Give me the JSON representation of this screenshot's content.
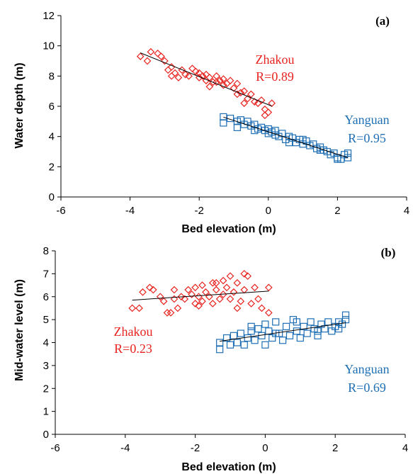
{
  "chart_data": [
    {
      "type": "scatter",
      "panel_label": "(a)",
      "xlabel": "Bed elevation (m)",
      "ylabel": "Water depth (m)",
      "xlim": [
        -6,
        4
      ],
      "ylim": [
        0,
        12
      ],
      "x_ticks": [
        -6,
        -4,
        -2,
        0,
        2,
        4
      ],
      "y_ticks": [
        0,
        2,
        4,
        6,
        8,
        10,
        12
      ],
      "grid": false,
      "series": [
        {
          "name": "Zhakou",
          "stat": "R=0.89",
          "color": "#e8231f",
          "marker": "diamond",
          "points": [
            [
              -3.7,
              9.3
            ],
            [
              -3.5,
              9.0
            ],
            [
              -3.4,
              9.6
            ],
            [
              -3.2,
              9.5
            ],
            [
              -3.1,
              9.3
            ],
            [
              -3.0,
              9.0
            ],
            [
              -2.8,
              8.6
            ],
            [
              -2.8,
              8.0
            ],
            [
              -2.7,
              8.2
            ],
            [
              -2.5,
              8.4
            ],
            [
              -2.4,
              8.1
            ],
            [
              -2.3,
              8.0
            ],
            [
              -2.2,
              8.5
            ],
            [
              -2.1,
              8.3
            ],
            [
              -2.0,
              8.2
            ],
            [
              -2.0,
              7.9
            ],
            [
              -1.9,
              8.0
            ],
            [
              -1.8,
              8.1
            ],
            [
              -1.8,
              7.7
            ],
            [
              -1.7,
              7.9
            ],
            [
              -1.6,
              7.6
            ],
            [
              -1.5,
              8.0
            ],
            [
              -1.4,
              7.7
            ],
            [
              -1.3,
              7.8
            ],
            [
              -1.3,
              7.4
            ],
            [
              -1.2,
              7.5
            ],
            [
              -1.1,
              7.7
            ],
            [
              -1.0,
              7.2
            ],
            [
              -0.9,
              7.5
            ],
            [
              -0.8,
              6.9
            ],
            [
              -0.7,
              7.0
            ],
            [
              -0.6,
              6.5
            ],
            [
              -0.5,
              6.8
            ],
            [
              -0.4,
              6.3
            ],
            [
              -0.3,
              6.2
            ],
            [
              -0.2,
              6.4
            ],
            [
              -0.1,
              5.8
            ],
            [
              -0.1,
              5.4
            ],
            [
              0.0,
              5.6
            ],
            [
              0.1,
              6.2
            ],
            [
              -2.9,
              8.4
            ],
            [
              -2.6,
              7.9
            ],
            [
              -1.7,
              7.3
            ],
            [
              -1.5,
              7.6
            ],
            [
              -0.9,
              6.8
            ],
            [
              -0.7,
              6.2
            ]
          ]
        },
        {
          "name": "Yanguan",
          "stat": "R=0.95",
          "color": "#1f6fb5",
          "marker": "square",
          "points": [
            [
              -1.3,
              5.3
            ],
            [
              -1.3,
              4.9
            ],
            [
              -1.1,
              5.2
            ],
            [
              -0.9,
              5.0
            ],
            [
              -0.8,
              5.1
            ],
            [
              -0.7,
              4.8
            ],
            [
              -0.6,
              5.0
            ],
            [
              -0.5,
              4.7
            ],
            [
              -0.4,
              4.8
            ],
            [
              -0.3,
              4.5
            ],
            [
              -0.2,
              4.6
            ],
            [
              -0.1,
              4.4
            ],
            [
              0.0,
              4.5
            ],
            [
              0.0,
              4.2
            ],
            [
              0.1,
              4.3
            ],
            [
              0.2,
              4.4
            ],
            [
              0.3,
              4.0
            ],
            [
              0.4,
              4.2
            ],
            [
              0.5,
              3.8
            ],
            [
              0.6,
              4.0
            ],
            [
              0.7,
              3.9
            ],
            [
              0.8,
              3.6
            ],
            [
              0.9,
              3.8
            ],
            [
              1.0,
              3.5
            ],
            [
              1.1,
              3.7
            ],
            [
              1.2,
              3.4
            ],
            [
              1.3,
              3.5
            ],
            [
              1.4,
              3.2
            ],
            [
              1.5,
              3.3
            ],
            [
              1.6,
              3.1
            ],
            [
              1.7,
              3.0
            ],
            [
              1.8,
              2.8
            ],
            [
              1.9,
              2.9
            ],
            [
              2.0,
              2.6
            ],
            [
              2.1,
              2.5
            ],
            [
              2.2,
              2.8
            ],
            [
              2.3,
              2.6
            ],
            [
              2.3,
              2.9
            ],
            [
              -0.9,
              4.6
            ],
            [
              -0.4,
              4.4
            ],
            [
              0.2,
              4.1
            ],
            [
              0.6,
              3.6
            ],
            [
              1.0,
              3.8
            ],
            [
              1.5,
              3.1
            ],
            [
              2.0,
              2.5
            ]
          ]
        }
      ]
    },
    {
      "type": "scatter",
      "panel_label": "(b)",
      "xlabel": "Bed elevation (m)",
      "ylabel": "Mid-water level (m)",
      "xlim": [
        -6,
        4
      ],
      "ylim": [
        0,
        8
      ],
      "x_ticks": [
        -6,
        -4,
        -2,
        0,
        2,
        4
      ],
      "y_ticks": [
        0,
        1,
        2,
        3,
        4,
        5,
        6,
        7,
        8
      ],
      "grid": false,
      "series": [
        {
          "name": "Zhakou",
          "stat": "R=0.23",
          "color": "#e8231f",
          "marker": "diamond",
          "points": [
            [
              -3.8,
              5.5
            ],
            [
              -3.6,
              5.5
            ],
            [
              -3.5,
              6.2
            ],
            [
              -3.3,
              6.4
            ],
            [
              -3.2,
              6.3
            ],
            [
              -3.0,
              6.0
            ],
            [
              -2.9,
              5.8
            ],
            [
              -2.8,
              5.3
            ],
            [
              -2.7,
              5.3
            ],
            [
              -2.6,
              5.9
            ],
            [
              -2.5,
              5.5
            ],
            [
              -2.4,
              6.0
            ],
            [
              -2.3,
              5.9
            ],
            [
              -2.2,
              6.3
            ],
            [
              -2.1,
              6.1
            ],
            [
              -2.0,
              5.7
            ],
            [
              -2.0,
              6.4
            ],
            [
              -1.9,
              6.0
            ],
            [
              -1.8,
              6.5
            ],
            [
              -1.8,
              5.8
            ],
            [
              -1.7,
              6.2
            ],
            [
              -1.6,
              6.0
            ],
            [
              -1.5,
              6.6
            ],
            [
              -1.5,
              5.7
            ],
            [
              -1.4,
              6.3
            ],
            [
              -1.3,
              5.9
            ],
            [
              -1.2,
              6.1
            ],
            [
              -1.2,
              6.7
            ],
            [
              -1.1,
              6.4
            ],
            [
              -1.0,
              5.9
            ],
            [
              -1.0,
              6.9
            ],
            [
              -0.9,
              6.2
            ],
            [
              -0.8,
              6.6
            ],
            [
              -0.7,
              5.8
            ],
            [
              -0.6,
              7.0
            ],
            [
              -0.6,
              6.3
            ],
            [
              -0.5,
              6.9
            ],
            [
              -0.4,
              5.7
            ],
            [
              -0.3,
              6.4
            ],
            [
              -0.2,
              5.9
            ],
            [
              -0.1,
              5.5
            ],
            [
              0.1,
              5.3
            ],
            [
              0.1,
              6.4
            ],
            [
              -2.6,
              6.3
            ],
            [
              -1.9,
              5.6
            ],
            [
              -1.4,
              6.6
            ],
            [
              -0.8,
              5.5
            ]
          ]
        },
        {
          "name": "Yanguan",
          "stat": "R=0.69",
          "color": "#1f6fb5",
          "marker": "square",
          "points": [
            [
              -1.3,
              3.7
            ],
            [
              -1.3,
              4.0
            ],
            [
              -1.1,
              4.2
            ],
            [
              -1.0,
              3.9
            ],
            [
              -0.9,
              4.3
            ],
            [
              -0.8,
              4.0
            ],
            [
              -0.7,
              4.4
            ],
            [
              -0.6,
              3.9
            ],
            [
              -0.5,
              4.2
            ],
            [
              -0.4,
              4.5
            ],
            [
              -0.3,
              4.1
            ],
            [
              -0.2,
              4.6
            ],
            [
              -0.1,
              4.3
            ],
            [
              0.0,
              4.8
            ],
            [
              0.0,
              3.9
            ],
            [
              0.1,
              4.5
            ],
            [
              0.2,
              4.2
            ],
            [
              0.3,
              4.9
            ],
            [
              0.4,
              4.4
            ],
            [
              0.5,
              4.1
            ],
            [
              0.6,
              4.7
            ],
            [
              0.7,
              4.3
            ],
            [
              0.8,
              5.0
            ],
            [
              0.9,
              4.5
            ],
            [
              1.0,
              4.2
            ],
            [
              1.1,
              4.7
            ],
            [
              1.2,
              4.4
            ],
            [
              1.3,
              4.9
            ],
            [
              1.4,
              4.6
            ],
            [
              1.5,
              4.3
            ],
            [
              1.6,
              4.8
            ],
            [
              1.7,
              4.6
            ],
            [
              1.8,
              4.9
            ],
            [
              1.9,
              4.5
            ],
            [
              2.0,
              4.7
            ],
            [
              2.1,
              4.9
            ],
            [
              2.2,
              4.8
            ],
            [
              2.3,
              5.2
            ],
            [
              2.3,
              5.0
            ],
            [
              -0.4,
              4.7
            ],
            [
              0.3,
              4.4
            ],
            [
              0.9,
              4.9
            ],
            [
              1.5,
              4.5
            ],
            [
              2.1,
              4.6
            ]
          ]
        }
      ]
    }
  ]
}
